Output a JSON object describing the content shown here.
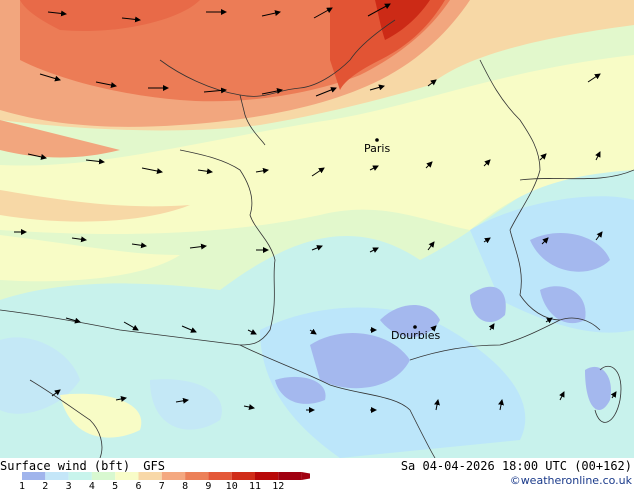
{
  "title": "Surface wind (bft)",
  "model": "GFS",
  "datetime": "Sa 04-04-2026 18:00 UTC (00+162)",
  "credit": "©weatheronline.co.uk",
  "cities": [
    {
      "name": "Paris"
    },
    {
      "name": "Dourbies"
    }
  ],
  "legend": {
    "ticks": [
      "1",
      "2",
      "3",
      "4",
      "5",
      "6",
      "7",
      "8",
      "9",
      "10",
      "11",
      "12"
    ],
    "colors": [
      "#a0b4ec",
      "#c4e6f8",
      "#c8f4ec",
      "#d8f8d0",
      "#f8fcc8",
      "#f8d8a8",
      "#f4a880",
      "#ec8058",
      "#e45838",
      "#d02c18",
      "#b80808",
      "#a00010"
    ]
  }
}
